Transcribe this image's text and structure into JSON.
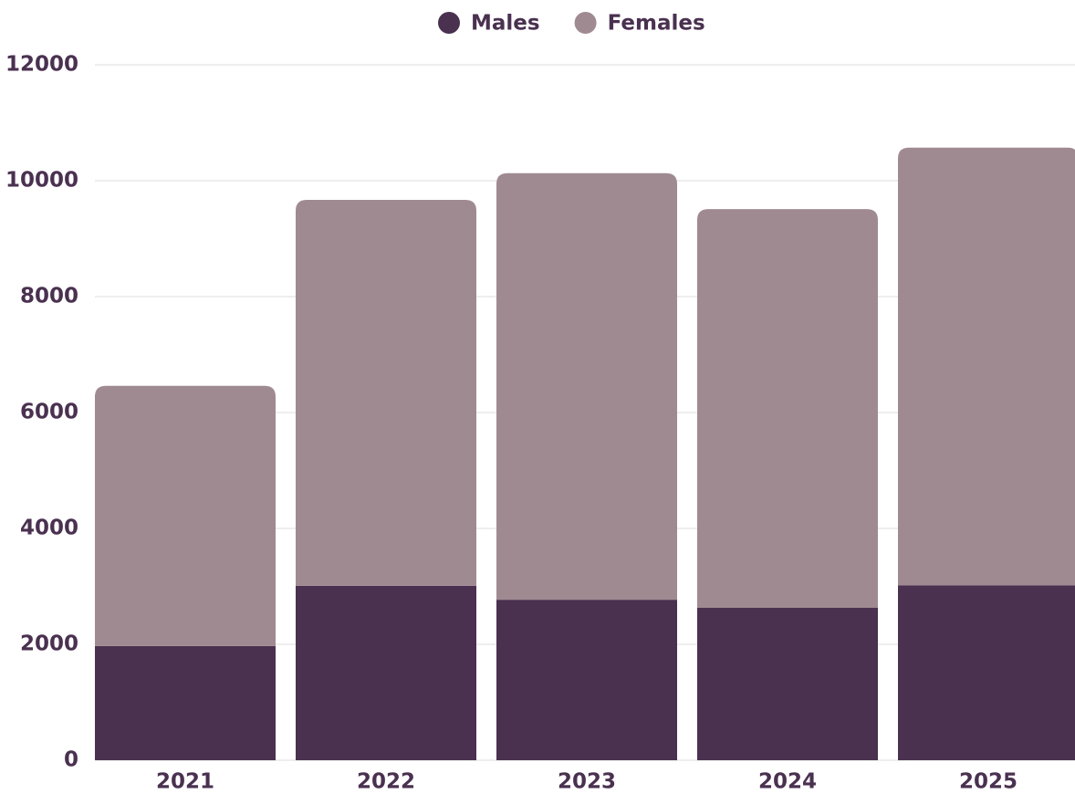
{
  "chart_data": {
    "type": "stacked_bar",
    "categories": [
      "2021",
      "2022",
      "2023",
      "2024",
      "2025"
    ],
    "series": [
      {
        "name": "Males",
        "color": "#4a3150",
        "values": [
          1970,
          3010,
          2770,
          2630,
          3020
        ]
      },
      {
        "name": "Females",
        "color": "#a08a91",
        "values": [
          4490,
          6660,
          7360,
          6880,
          7550
        ]
      }
    ],
    "ylim": [
      0,
      12000
    ],
    "yticks": [
      0,
      2000,
      4000,
      6000,
      8000,
      10000,
      12000
    ],
    "grid": true,
    "legend": "top"
  }
}
